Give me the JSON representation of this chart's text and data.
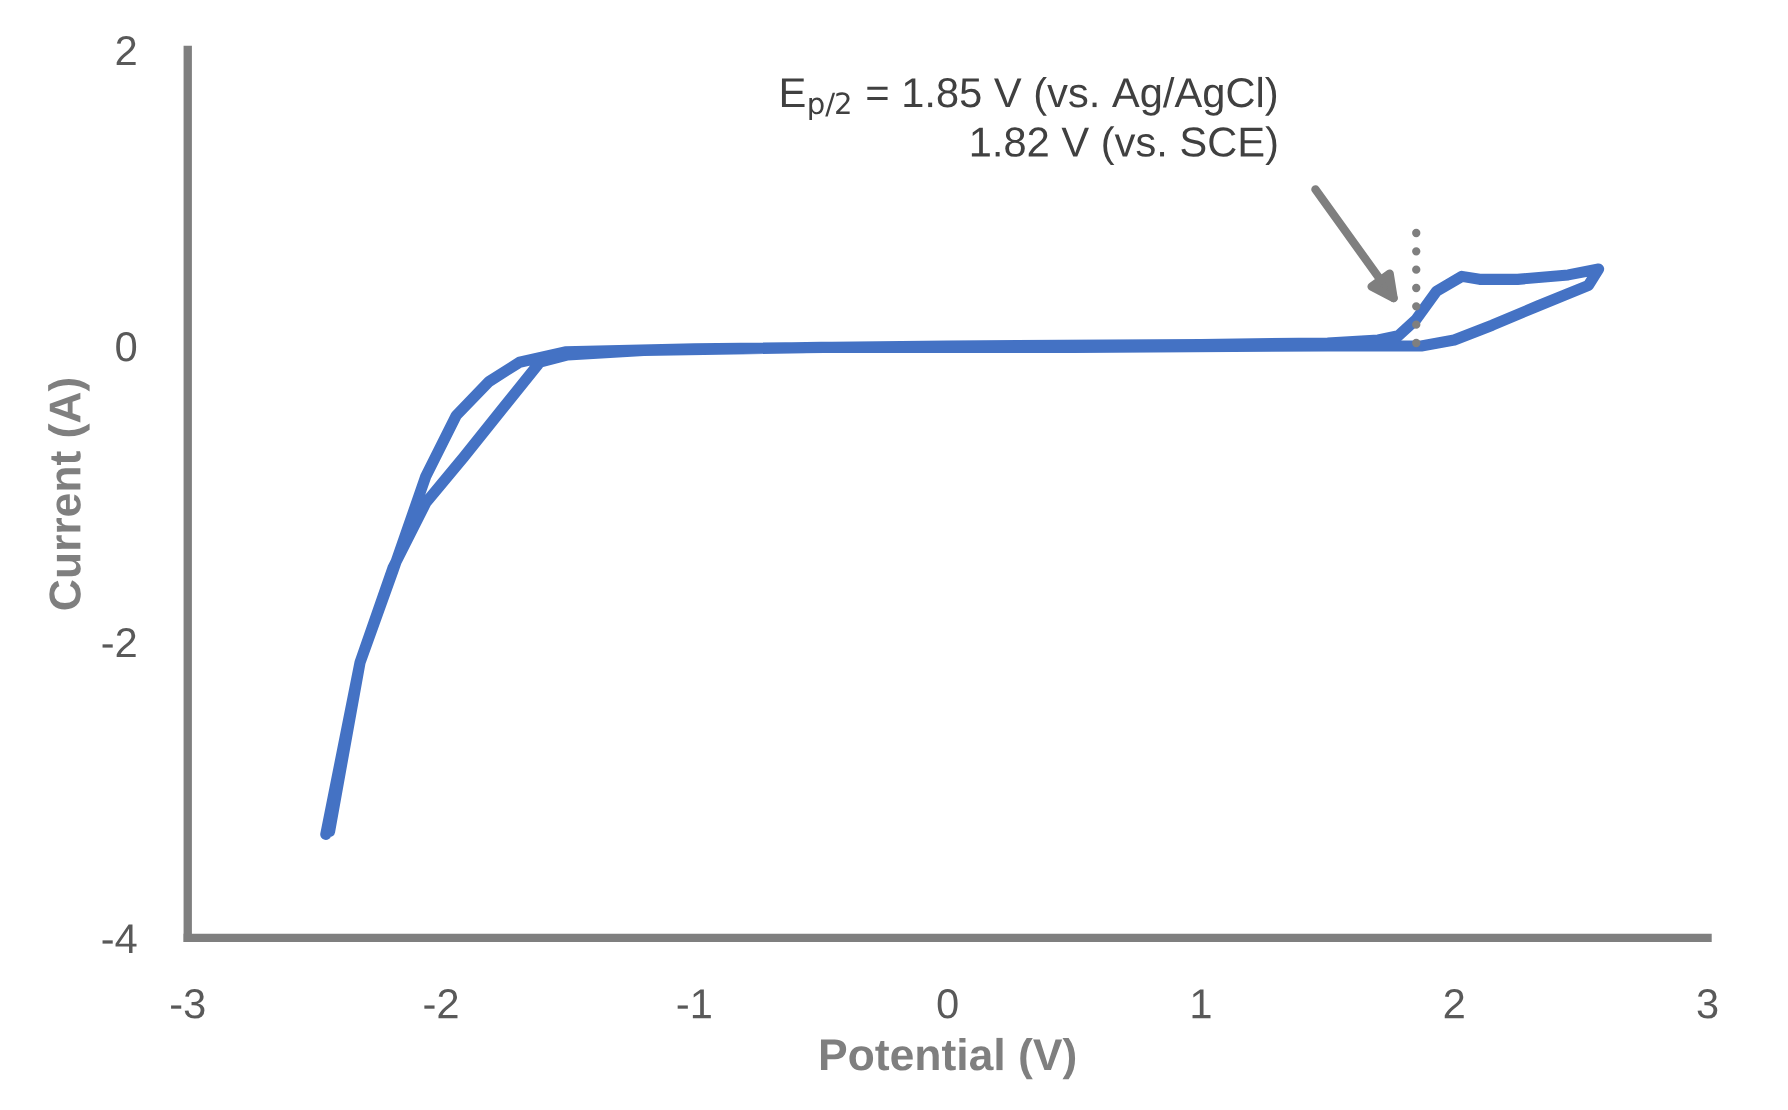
{
  "chart_data": {
    "type": "line",
    "xlabel": "Potential (V)",
    "ylabel": "Current (A)",
    "xlim": [
      -3,
      3
    ],
    "ylim": [
      -4,
      2
    ],
    "xticks": [
      -3,
      -2,
      -1,
      0,
      1,
      2,
      3
    ],
    "yticks": [
      -4,
      -2,
      0,
      2
    ],
    "grid": false,
    "legend": false,
    "series": [
      {
        "color": "#4472c4",
        "x": [
          -2.455,
          -2.32,
          -2.19,
          -2.06,
          -1.94,
          -1.81,
          -1.69,
          -1.51,
          -1.0,
          0.0,
          1.0,
          1.5,
          1.7,
          1.78,
          1.85,
          1.93,
          2.03,
          2.1,
          2.25,
          2.45,
          2.57,
          2.53,
          2.33,
          2.15,
          2.0,
          1.87,
          1.5,
          0.5,
          -0.5,
          -1.2,
          -1.5,
          -1.61,
          -1.76,
          -1.91,
          -2.06,
          -2.19,
          -2.32,
          -2.44
        ],
        "values": [
          -3.3,
          -2.14,
          -1.52,
          -0.88,
          -0.47,
          -0.24,
          -0.11,
          -0.04,
          -0.02,
          0.0,
          0.01,
          0.02,
          0.04,
          0.07,
          0.18,
          0.37,
          0.47,
          0.45,
          0.45,
          0.48,
          0.52,
          0.41,
          0.27,
          0.14,
          0.04,
          0.0,
          0.0,
          -0.01,
          -0.01,
          -0.03,
          -0.06,
          -0.11,
          -0.43,
          -0.75,
          -1.06,
          -1.5,
          -2.14,
          -3.28
        ]
      },
      {
        "type": "line",
        "color": "#7f7f7f",
        "line_style": "dotted",
        "x": [
          1.85,
          1.85
        ],
        "values": [
          0.02,
          0.77
        ]
      }
    ],
    "annotations": [
      "E$_{p/2}$ = 1.85 V (vs. Ag/AgCl)\n1.82 V (vs. SCE)"
    ]
  }
}
